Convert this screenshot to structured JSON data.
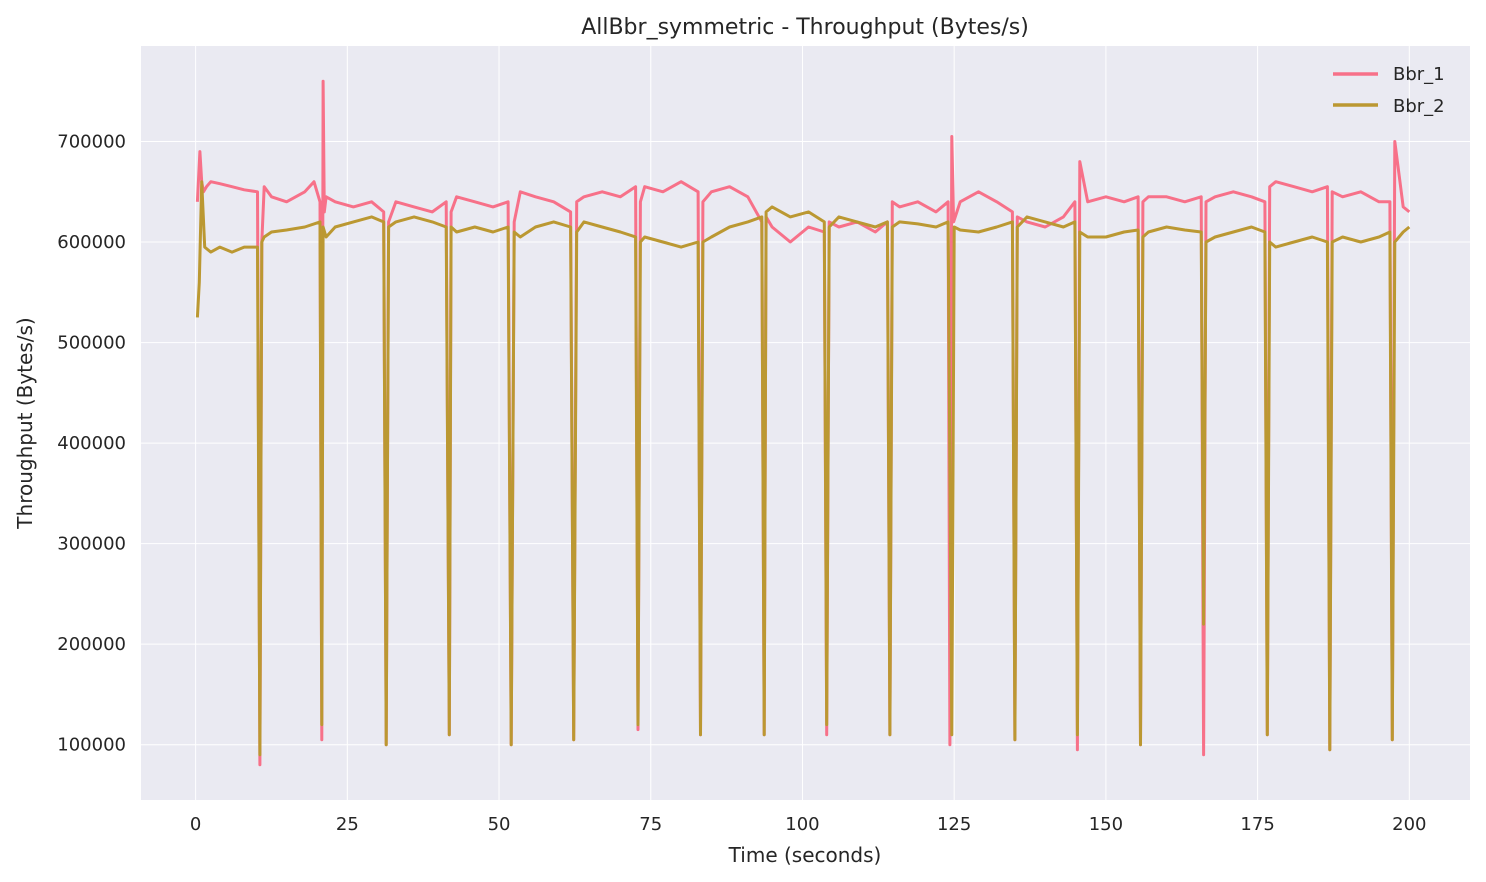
{
  "chart_data": {
    "type": "line",
    "title": "AllBbr_symmetric - Throughput (Bytes/s)",
    "xlabel": "Time (seconds)",
    "ylabel": "Throughput (Bytes/s)",
    "xlim": [
      -9,
      210
    ],
    "ylim": [
      45000,
      795000
    ],
    "xticks": [
      0,
      25,
      50,
      75,
      100,
      125,
      150,
      175,
      200
    ],
    "xtick_labels": [
      "0",
      "25",
      "50",
      "75",
      "100",
      "125",
      "150",
      "175",
      "200"
    ],
    "yticks": [
      100000,
      200000,
      300000,
      400000,
      500000,
      600000,
      700000
    ],
    "ytick_labels": [
      "100000",
      "200000",
      "300000",
      "400000",
      "500000",
      "600000",
      "700000"
    ],
    "grid": true,
    "background": "#eaeaf2",
    "legend_position": "top-right",
    "series": [
      {
        "name": "Bbr_1",
        "color": "#f77189",
        "x": [
          0.3,
          0.7,
          1.0,
          1.3,
          1.8,
          2.5,
          4.0,
          6.0,
          8.0,
          10.2,
          10.6,
          10.9,
          11.3,
          12.5,
          15.0,
          18.0,
          19.5,
          20.5,
          20.8,
          21.0,
          21.2,
          21.5,
          23.0,
          26.0,
          29.0,
          31.0,
          31.4,
          31.8,
          33.0,
          36.0,
          39.0,
          41.3,
          41.8,
          42.1,
          43.0,
          46.0,
          49.0,
          51.5,
          52.0,
          52.5,
          53.5,
          56.0,
          59.0,
          61.8,
          62.3,
          62.8,
          64.0,
          67.0,
          70.0,
          72.5,
          72.9,
          73.3,
          74.0,
          77.0,
          80.0,
          82.8,
          83.2,
          83.6,
          85.0,
          88.0,
          91.0,
          93.3,
          93.7,
          94.0,
          95.0,
          98.0,
          101.0,
          103.6,
          104.0,
          104.4,
          106.0,
          109.0,
          112.0,
          114.0,
          114.4,
          114.8,
          116.0,
          119.0,
          122.0,
          124.0,
          124.3,
          124.6,
          124.9,
          126.0,
          129.0,
          132.0,
          134.6,
          135.0,
          135.4,
          137.0,
          140.0,
          143.0,
          144.9,
          145.3,
          145.7,
          147.0,
          150.0,
          153.0,
          155.3,
          155.7,
          156.1,
          157.0,
          160.0,
          163.0,
          165.7,
          166.1,
          166.5,
          168.0,
          171.0,
          174.0,
          176.2,
          176.6,
          177.0,
          178.0,
          181.0,
          184.0,
          186.5,
          186.9,
          187.3,
          189.0,
          192.0,
          195.0,
          196.8,
          197.2,
          197.6,
          199.0,
          200.0
        ],
        "y": [
          640000,
          690000,
          660000,
          650000,
          655000,
          660000,
          658000,
          655000,
          652000,
          650000,
          80000,
          600000,
          655000,
          645000,
          640000,
          650000,
          660000,
          640000,
          105000,
          760000,
          630000,
          645000,
          640000,
          635000,
          640000,
          630000,
          100000,
          620000,
          640000,
          635000,
          630000,
          640000,
          110000,
          630000,
          645000,
          640000,
          635000,
          640000,
          100000,
          620000,
          650000,
          645000,
          640000,
          630000,
          105000,
          640000,
          645000,
          650000,
          645000,
          655000,
          115000,
          640000,
          655000,
          650000,
          660000,
          650000,
          110000,
          640000,
          650000,
          655000,
          645000,
          620000,
          110000,
          625000,
          615000,
          600000,
          615000,
          610000,
          110000,
          620000,
          615000,
          620000,
          610000,
          620000,
          110000,
          640000,
          635000,
          640000,
          630000,
          640000,
          100000,
          705000,
          620000,
          640000,
          650000,
          640000,
          630000,
          105000,
          625000,
          620000,
          615000,
          625000,
          640000,
          95000,
          680000,
          640000,
          645000,
          640000,
          645000,
          100000,
          640000,
          645000,
          645000,
          640000,
          645000,
          90000,
          640000,
          645000,
          650000,
          645000,
          640000,
          110000,
          655000,
          660000,
          655000,
          650000,
          655000,
          95000,
          650000,
          645000,
          650000,
          640000,
          640000,
          105000,
          700000,
          635000,
          630000
        ]
      },
      {
        "name": "Bbr_2",
        "color": "#bb9832",
        "x": [
          0.3,
          0.6,
          1.0,
          1.5,
          2.5,
          4.0,
          6.0,
          8.0,
          10.2,
          10.6,
          10.9,
          11.3,
          12.5,
          15.0,
          18.0,
          20.5,
          20.8,
          21.0,
          21.5,
          23.0,
          26.0,
          29.0,
          31.0,
          31.4,
          31.8,
          33.0,
          36.0,
          39.0,
          41.3,
          41.8,
          42.1,
          43.0,
          46.0,
          49.0,
          51.5,
          52.0,
          52.5,
          53.5,
          56.0,
          59.0,
          61.8,
          62.3,
          62.8,
          64.0,
          67.0,
          70.0,
          72.5,
          72.9,
          73.3,
          74.0,
          77.0,
          80.0,
          82.8,
          83.2,
          83.6,
          85.0,
          88.0,
          91.0,
          93.3,
          93.7,
          94.0,
          95.0,
          98.0,
          101.0,
          103.6,
          104.0,
          104.4,
          106.0,
          109.0,
          112.0,
          114.0,
          114.4,
          114.8,
          116.0,
          119.0,
          122.0,
          124.0,
          124.6,
          125.0,
          126.0,
          129.0,
          132.0,
          134.6,
          135.0,
          135.4,
          137.0,
          140.0,
          143.0,
          144.9,
          145.3,
          145.7,
          147.0,
          150.0,
          153.0,
          155.3,
          155.7,
          156.1,
          157.0,
          160.0,
          163.0,
          165.7,
          166.1,
          166.5,
          168.0,
          171.0,
          174.0,
          176.2,
          176.6,
          177.0,
          178.0,
          181.0,
          184.0,
          186.5,
          186.9,
          187.3,
          189.0,
          192.0,
          195.0,
          196.8,
          197.2,
          197.6,
          199.0,
          200.0
        ],
        "y": [
          525000,
          560000,
          660000,
          595000,
          590000,
          595000,
          590000,
          595000,
          595000,
          90000,
          600000,
          605000,
          610000,
          612000,
          615000,
          620000,
          120000,
          615000,
          605000,
          615000,
          620000,
          625000,
          620000,
          100000,
          615000,
          620000,
          625000,
          620000,
          615000,
          110000,
          615000,
          610000,
          615000,
          610000,
          615000,
          100000,
          610000,
          605000,
          615000,
          620000,
          615000,
          105000,
          610000,
          620000,
          615000,
          610000,
          605000,
          120000,
          600000,
          605000,
          600000,
          595000,
          600000,
          110000,
          600000,
          605000,
          615000,
          620000,
          625000,
          110000,
          630000,
          635000,
          625000,
          630000,
          620000,
          120000,
          615000,
          625000,
          620000,
          615000,
          620000,
          110000,
          615000,
          620000,
          618000,
          615000,
          620000,
          110000,
          615000,
          612000,
          610000,
          615000,
          620000,
          105000,
          615000,
          625000,
          620000,
          615000,
          620000,
          110000,
          610000,
          605000,
          605000,
          610000,
          612000,
          100000,
          605000,
          610000,
          615000,
          612000,
          610000,
          220000,
          600000,
          605000,
          610000,
          615000,
          610000,
          110000,
          600000,
          595000,
          600000,
          605000,
          600000,
          95000,
          600000,
          605000,
          600000,
          605000,
          610000,
          105000,
          600000,
          610000,
          615000
        ]
      }
    ]
  }
}
